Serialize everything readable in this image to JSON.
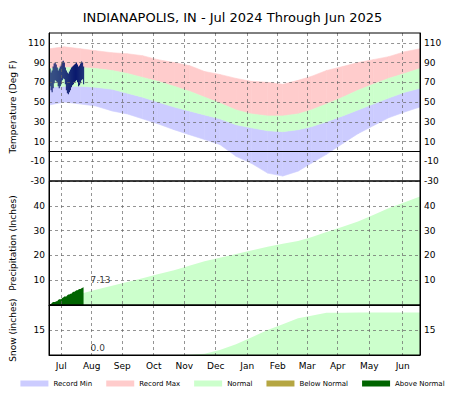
{
  "chart_data": [
    {
      "type": "area",
      "title": "INDIANAPOLIS, IN - Jul 2024 Through Jun 2025",
      "y_label": "Temperature (Deg F)",
      "xlim": [
        0,
        365
      ],
      "xticks": [
        {
          "value": 12,
          "label": "Jul"
        },
        {
          "value": 42,
          "label": "Aug"
        },
        {
          "value": 72,
          "label": "Sep"
        },
        {
          "value": 103,
          "label": "Oct"
        },
        {
          "value": 133,
          "label": "Nov"
        },
        {
          "value": 164,
          "label": "Dec"
        },
        {
          "value": 195,
          "label": "Jan"
        },
        {
          "value": 225,
          "label": "Feb"
        },
        {
          "value": 254,
          "label": "Mar"
        },
        {
          "value": 284,
          "label": "Apr"
        },
        {
          "value": 315,
          "label": "May"
        },
        {
          "value": 348,
          "label": "Jun"
        }
      ],
      "ylim": [
        -30,
        120
      ],
      "yticks": [
        -30,
        -10,
        10,
        30,
        50,
        70,
        90,
        110
      ],
      "grid": true,
      "tick_labels": "y",
      "series": [
        {
          "name": "Record Min",
          "type": "lower",
          "color": "#ccccff",
          "x": [
            0,
            15,
            31,
            46,
            62,
            77,
            92,
            107,
            123,
            138,
            153,
            168,
            184,
            199,
            215,
            230,
            245,
            258,
            273,
            289,
            304,
            319,
            334,
            350,
            365
          ],
          "values": [
            47,
            50,
            48,
            46,
            41,
            38,
            33,
            28,
            22,
            17,
            12,
            7,
            -5,
            -12,
            -22,
            -25,
            -20,
            -12,
            -3,
            8,
            18,
            26,
            34,
            40,
            45
          ]
        },
        {
          "name": "Record Max",
          "type": "upper",
          "color": "#ffcccc",
          "x": [
            0,
            15,
            31,
            46,
            62,
            77,
            92,
            107,
            123,
            138,
            153,
            168,
            184,
            199,
            215,
            230,
            245,
            258,
            273,
            289,
            304,
            319,
            334,
            350,
            365
          ],
          "values": [
            104,
            106,
            104,
            102,
            100,
            99,
            97,
            93,
            90,
            87,
            81,
            78,
            74,
            71,
            70,
            68,
            72,
            76,
            82,
            86,
            90,
            93,
            96,
            101,
            104
          ]
        },
        {
          "name": "Normal",
          "type": "band",
          "color": "#ccffcc",
          "x": [
            0,
            15,
            31,
            46,
            62,
            77,
            92,
            107,
            123,
            138,
            153,
            168,
            184,
            199,
            215,
            230,
            245,
            258,
            273,
            289,
            304,
            319,
            334,
            350,
            365
          ],
          "low": [
            65,
            66,
            66,
            65,
            63,
            59,
            55,
            50,
            45,
            41,
            37,
            33,
            27,
            24,
            21,
            20,
            22,
            25,
            30,
            36,
            42,
            48,
            54,
            60,
            64
          ],
          "high": [
            84,
            85,
            85,
            84,
            82,
            79,
            75,
            71,
            66,
            61,
            55,
            49,
            42,
            38,
            36,
            36,
            38,
            42,
            48,
            55,
            62,
            68,
            74,
            79,
            84
          ]
        },
        {
          "type": "bars",
          "color": "#0a1a6e",
          "x": [
            0,
            1,
            2,
            3,
            4,
            5,
            6,
            7,
            8,
            9,
            10,
            11,
            12,
            13,
            14,
            15,
            16,
            17,
            18,
            19,
            20,
            21,
            22,
            23,
            24,
            25,
            26,
            27,
            28,
            29,
            30,
            31,
            32,
            33,
            34
          ],
          "low": [
            68,
            66,
            62,
            60,
            64,
            69,
            72,
            71,
            70,
            66,
            64,
            66,
            68,
            72,
            74,
            73,
            68,
            62,
            59,
            58,
            60,
            62,
            65,
            67,
            68,
            70,
            71,
            72,
            70,
            66,
            67,
            69,
            72,
            73,
            68
          ],
          "high": [
            88,
            84,
            80,
            82,
            86,
            89,
            90,
            88,
            85,
            82,
            84,
            86,
            88,
            91,
            92,
            90,
            85,
            82,
            80,
            79,
            81,
            83,
            85,
            86,
            87,
            88,
            89,
            90,
            88,
            86,
            87,
            89,
            91,
            90,
            86
          ]
        }
      ]
    },
    {
      "type": "area",
      "y_label": "Precipitation (Inches)",
      "xlim": [
        0,
        365
      ],
      "xticks": [
        {
          "value": 12,
          "label": "Jul"
        },
        {
          "value": 42,
          "label": "Aug"
        },
        {
          "value": 72,
          "label": "Sep"
        },
        {
          "value": 103,
          "label": "Oct"
        },
        {
          "value": 133,
          "label": "Nov"
        },
        {
          "value": 164,
          "label": "Dec"
        },
        {
          "value": 195,
          "label": "Jan"
        },
        {
          "value": 225,
          "label": "Feb"
        },
        {
          "value": 254,
          "label": "Mar"
        },
        {
          "value": 284,
          "label": "Apr"
        },
        {
          "value": 315,
          "label": "May"
        },
        {
          "value": 348,
          "label": "Jun"
        }
      ],
      "ylim": [
        0,
        50
      ],
      "yticks": [
        10,
        20,
        30,
        40
      ],
      "grid": true,
      "tick_labels": "y",
      "annotations": [
        {
          "text": "7.13"
        }
      ],
      "series": [
        {
          "name": "Normal",
          "type": "area",
          "color": "#ccffcc",
          "x": [
            0,
            15,
            31,
            46,
            62,
            77,
            92,
            107,
            123,
            138,
            153,
            168,
            184,
            199,
            215,
            230,
            245,
            258,
            273,
            289,
            304,
            319,
            334,
            350,
            365
          ],
          "values": [
            0,
            2.2,
            4.5,
            6.1,
            7.8,
            9.3,
            10.8,
            12.4,
            14.0,
            15.8,
            17.6,
            19.1,
            20.6,
            22.0,
            23.5,
            24.7,
            25.8,
            27.3,
            29.4,
            31.6,
            33.7,
            36.3,
            39.0,
            41.4,
            43.7
          ]
        },
        {
          "name": "Below Normal",
          "type": "area",
          "color": "#b5a642",
          "x": [],
          "values": []
        },
        {
          "name": "Above Normal",
          "type": "area",
          "color": "#006400",
          "x": [
            0,
            1,
            2,
            3,
            4,
            5,
            6,
            7,
            8,
            9,
            10,
            11,
            12,
            13,
            14,
            15,
            16,
            17,
            18,
            19,
            20,
            21,
            22,
            23,
            24,
            25,
            26,
            27,
            28,
            29,
            30,
            31,
            32,
            33,
            34
          ],
          "values": [
            0.0,
            0.4,
            0.4,
            0.9,
            1.2,
            1.2,
            1.2,
            1.5,
            1.5,
            2.0,
            2.3,
            2.3,
            2.3,
            2.8,
            3.0,
            3.4,
            3.4,
            3.4,
            3.9,
            4.2,
            4.2,
            4.5,
            4.5,
            5.0,
            5.3,
            5.3,
            5.6,
            5.9,
            5.9,
            6.2,
            6.5,
            6.5,
            6.8,
            7.0,
            7.13
          ]
        }
      ]
    },
    {
      "type": "area",
      "y_label": "Snow (inches)",
      "xlim": [
        0,
        365
      ],
      "xticks": [
        {
          "value": 12,
          "label": "Jul"
        },
        {
          "value": 42,
          "label": "Aug"
        },
        {
          "value": 72,
          "label": "Sep"
        },
        {
          "value": 103,
          "label": "Oct"
        },
        {
          "value": 133,
          "label": "Nov"
        },
        {
          "value": 164,
          "label": "Dec"
        },
        {
          "value": 195,
          "label": "Jan"
        },
        {
          "value": 225,
          "label": "Feb"
        },
        {
          "value": 254,
          "label": "Mar"
        },
        {
          "value": 284,
          "label": "Apr"
        },
        {
          "value": 315,
          "label": "May"
        },
        {
          "value": 348,
          "label": "Jun"
        }
      ],
      "ylim": [
        0,
        30
      ],
      "yticks": [
        15
      ],
      "grid": true,
      "legend": "bottom",
      "annotations": [
        {
          "text": "0.0"
        }
      ],
      "series": [
        {
          "name": "Normal",
          "type": "area",
          "color": "#ccffcc",
          "x": [
            0,
            15,
            31,
            46,
            62,
            77,
            92,
            107,
            123,
            138,
            153,
            168,
            184,
            199,
            215,
            230,
            245,
            258,
            273,
            289,
            304,
            319,
            334,
            350,
            365
          ],
          "values": [
            0,
            0,
            0,
            0,
            0,
            0,
            0,
            0,
            0,
            0.2,
            0.8,
            3.0,
            6.4,
            10.5,
            15.0,
            18.5,
            22.0,
            23.6,
            25.3,
            25.4,
            25.5,
            25.5,
            25.5,
            25.5,
            25.5
          ]
        },
        {
          "type": "area",
          "color": "#006400",
          "x": [
            0,
            1,
            2,
            3,
            4,
            5,
            6,
            7,
            8,
            9,
            10,
            11,
            12,
            13,
            14,
            15,
            16,
            17,
            18,
            19,
            20,
            21,
            22,
            23,
            24,
            25,
            26,
            27,
            28,
            29,
            30,
            31,
            32,
            33,
            34
          ],
          "values": [
            0,
            0,
            0,
            0,
            0,
            0,
            0,
            0,
            0,
            0,
            0,
            0,
            0,
            0,
            0,
            0,
            0,
            0,
            0,
            0,
            0,
            0,
            0,
            0,
            0,
            0,
            0,
            0,
            0,
            0,
            0,
            0,
            0,
            0,
            0
          ]
        }
      ]
    }
  ]
}
